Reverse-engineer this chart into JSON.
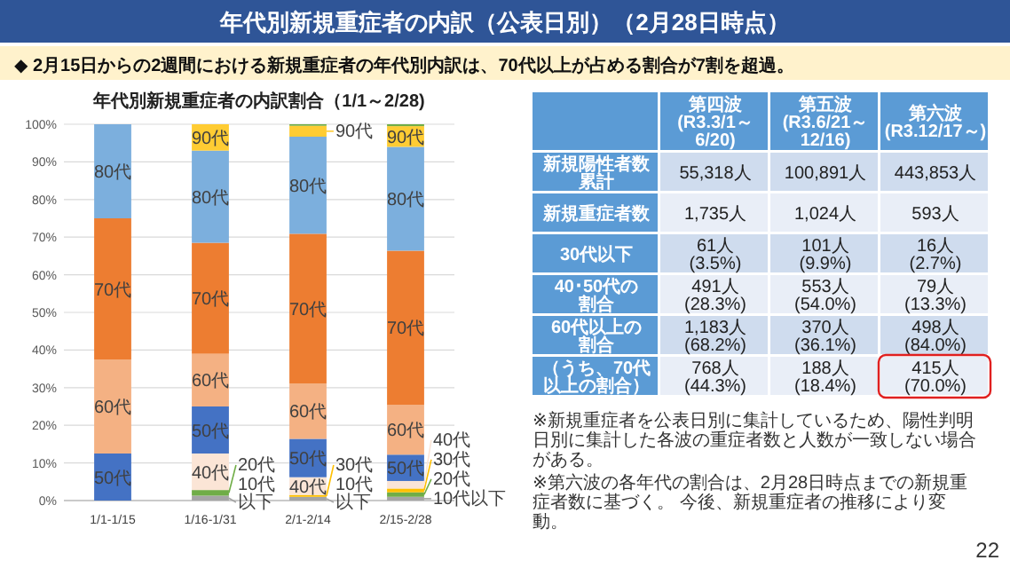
{
  "chart_data": [
    {
      "type": "other",
      "title": "年代別新規重症者の内訳（公表日別）（2月28日時点）",
      "subtitle": "◆ 2月15日からの2週間における新規重症者の年代別内訳は、70代以上が占める割合が7割を超過。",
      "annotations": [
        "※新規重症者を公表日別に集計しているため、陽性判明日別に集計した各波の重症者数と人数が一致しない場合がある。",
        "※第六波の各年代の割合は、2月28日時点までの新規重症者数に基づく。 今後、新規重症者の推移により変動。",
        "22"
      ]
    },
    {
      "type": "bar",
      "stacked": true,
      "title": "年代別新規重症者の内訳割合（1/1～2/28)",
      "categories": [
        "1/1-1/15",
        "1/16-1/31",
        "2/1-2/14",
        "2/15-2/28"
      ],
      "ylim": [
        0,
        100
      ],
      "yticks": [
        {
          "value": 0,
          "label": "0%"
        },
        {
          "value": 10,
          "label": "10%"
        },
        {
          "value": 20,
          "label": "20%"
        },
        {
          "value": 30,
          "label": "30%"
        },
        {
          "value": 40,
          "label": "40%"
        },
        {
          "value": 50,
          "label": "50%"
        },
        {
          "value": 60,
          "label": "60%"
        },
        {
          "value": 70,
          "label": "70%"
        },
        {
          "value": 80,
          "label": "80%"
        },
        {
          "value": 90,
          "label": "90%"
        },
        {
          "value": 100,
          "label": "100%"
        }
      ],
      "grid": "y",
      "legend": "right",
      "series": [
        {
          "name": "10代以下",
          "color": "#a5a5a5",
          "values": [
            0,
            1.3,
            1.0,
            1.0
          ]
        },
        {
          "name": "20代",
          "color": "#70ad47",
          "values": [
            0,
            1.5,
            0,
            1.2
          ]
        },
        {
          "name": "30代",
          "color": "#ffc000",
          "values": [
            0,
            0,
            0.5,
            1.0
          ]
        },
        {
          "name": "40代",
          "color": "#fbe5d6",
          "values": [
            0,
            9.7,
            4.7,
            2.0
          ]
        },
        {
          "name": "50代",
          "color": "#4472c4",
          "values": [
            12.5,
            12.5,
            10.2,
            7.0
          ]
        },
        {
          "name": "60代",
          "color": "#f4b183",
          "values": [
            25,
            14,
            14.7,
            13.2
          ]
        },
        {
          "name": "70代",
          "color": "#ed7d31",
          "values": [
            37.5,
            29.5,
            39.8,
            41.0
          ]
        },
        {
          "name": "80代",
          "color": "#7cafdd",
          "values": [
            25,
            24.5,
            25.8,
            27.6
          ]
        },
        {
          "name": "90代",
          "color": "#ffcc33",
          "values": [
            0,
            7,
            2.9,
            5.5
          ]
        },
        {
          "color": "#70ad47",
          "values": [
            0,
            0,
            0.4,
            0.5
          ]
        }
      ]
    },
    {
      "type": "other",
      "categories": [
        "第四波\n(R3.3/1～\n6/20)",
        "第五波\n(R3.6/21～\n12/16)",
        "第六波\n(R3.12/17～)"
      ],
      "y_categories": [
        "新規陽性者数累計",
        "新規重症者数",
        "30代以下",
        "40･50代の割合",
        "60代以上の割合",
        "（うち、70代以上の割合）"
      ],
      "cell_labels": [
        [
          "55,318人",
          "100,891人",
          "443,853人"
        ],
        [
          "1,735人",
          "1,024人",
          "593人"
        ],
        [
          "61人\n(3.5%)",
          "101人\n(9.9%)",
          "16人\n(2.7%)"
        ],
        [
          "491人\n(28.3%)",
          "553人\n(54.0%)",
          "79人\n(13.3%)"
        ],
        [
          "1,183人\n(68.2%)",
          "370人\n(36.1%)",
          "498人\n(84.0%)"
        ],
        [
          "768人\n(44.3%)",
          "188人\n(18.4%)",
          "415人\n(70.0%)"
        ]
      ]
    }
  ]
}
